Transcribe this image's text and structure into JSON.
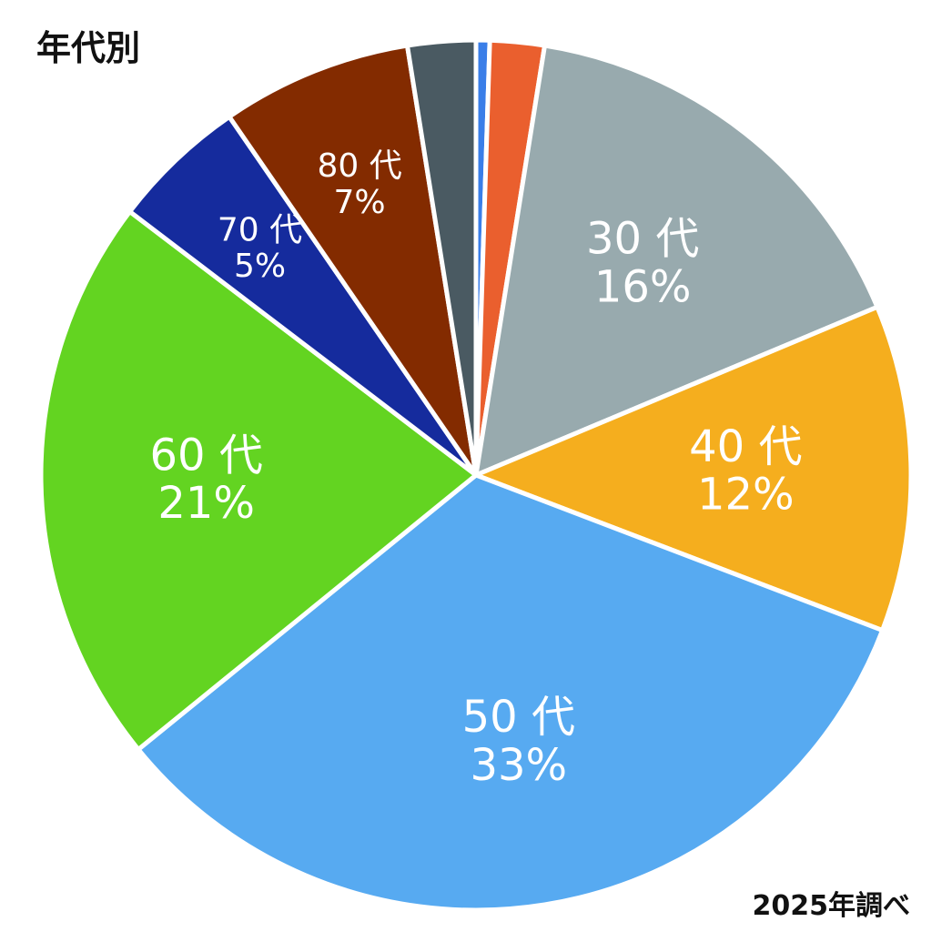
{
  "title": "年代別",
  "source_note": "2025年調べ",
  "chart_data": {
    "type": "pie",
    "title": "年代別",
    "start": "top",
    "direction": "clockwise",
    "slices": [
      {
        "label": "",
        "value": 0.5,
        "percent": "",
        "color": "#3a7ee8"
      },
      {
        "label": "",
        "value": 2,
        "percent": "",
        "color": "#ea5f2e"
      },
      {
        "label": "30 代",
        "value": 16,
        "percent": "16%",
        "color": "#98aaae"
      },
      {
        "label": "40 代",
        "value": 12,
        "percent": "12%",
        "color": "#f5ae1e"
      },
      {
        "label": "50 代",
        "value": 33,
        "percent": "33%",
        "color": "#57aaf1"
      },
      {
        "label": "60 代",
        "value": 21,
        "percent": "21%",
        "color": "#63d421"
      },
      {
        "label": "70 代",
        "value": 5,
        "percent": "5%",
        "color": "#152b9d"
      },
      {
        "label": "80 代",
        "value": 7,
        "percent": "7%",
        "color": "#832b00"
      },
      {
        "label": "",
        "value": 2.5,
        "percent": "",
        "color": "#4a5a62"
      }
    ]
  }
}
